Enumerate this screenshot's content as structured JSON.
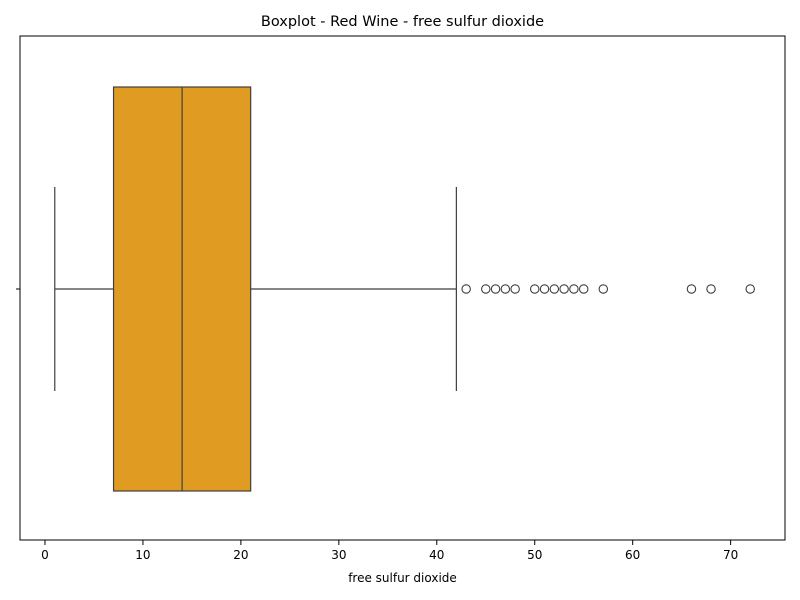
{
  "chart_data": {
    "type": "boxplot",
    "title": "Boxplot - Red Wine - free sulfur dioxide",
    "xlabel": "free sulfur dioxide",
    "ylabel": "",
    "orientation": "horizontal",
    "xlim": [
      -2.55,
      75.55
    ],
    "xticks": [
      0,
      10,
      20,
      30,
      40,
      50,
      60,
      70
    ],
    "xtick_labels": [
      "0",
      "10",
      "20",
      "30",
      "40",
      "50",
      "60",
      "70"
    ],
    "grid": false,
    "legend": "none",
    "box": {
      "whisker_low": 1,
      "q1": 7,
      "median": 14,
      "q3": 21,
      "whisker_high": 42,
      "outliers": [
        43,
        45,
        46,
        47,
        48,
        50,
        51,
        52,
        53,
        54,
        55,
        57,
        66,
        68,
        72
      ]
    },
    "colors": {
      "box_fill": "#e09c22",
      "line": "#3f3f3f",
      "outlier_edge": "#3f3f3f"
    }
  }
}
